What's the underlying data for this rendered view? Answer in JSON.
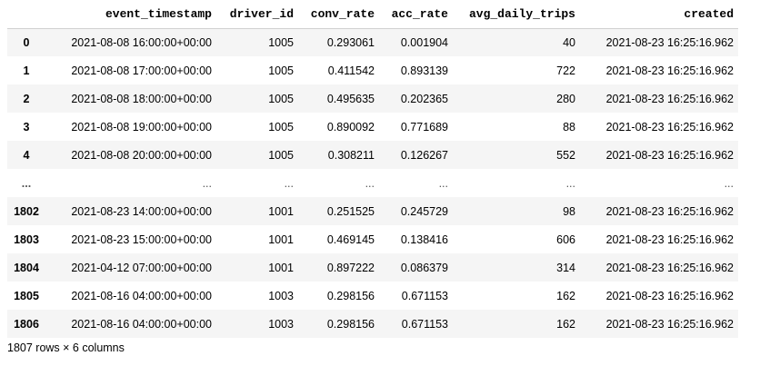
{
  "table": {
    "columns": [
      "",
      "event_timestamp",
      "driver_id",
      "conv_rate",
      "acc_rate",
      "avg_daily_trips",
      "created"
    ],
    "rows": [
      [
        "0",
        "2021-08-08 16:00:00+00:00",
        "1005",
        "0.293061",
        "0.001904",
        "40",
        "2021-08-23 16:25:16.962"
      ],
      [
        "1",
        "2021-08-08 17:00:00+00:00",
        "1005",
        "0.411542",
        "0.893139",
        "722",
        "2021-08-23 16:25:16.962"
      ],
      [
        "2",
        "2021-08-08 18:00:00+00:00",
        "1005",
        "0.495635",
        "0.202365",
        "280",
        "2021-08-23 16:25:16.962"
      ],
      [
        "3",
        "2021-08-08 19:00:00+00:00",
        "1005",
        "0.890092",
        "0.771689",
        "88",
        "2021-08-23 16:25:16.962"
      ],
      [
        "4",
        "2021-08-08 20:00:00+00:00",
        "1005",
        "0.308211",
        "0.126267",
        "552",
        "2021-08-23 16:25:16.962"
      ],
      [
        "...",
        "...",
        "...",
        "...",
        "...",
        "...",
        "..."
      ],
      [
        "1802",
        "2021-08-23 14:00:00+00:00",
        "1001",
        "0.251525",
        "0.245729",
        "98",
        "2021-08-23 16:25:16.962"
      ],
      [
        "1803",
        "2021-08-23 15:00:00+00:00",
        "1001",
        "0.469145",
        "0.138416",
        "606",
        "2021-08-23 16:25:16.962"
      ],
      [
        "1804",
        "2021-04-12 07:00:00+00:00",
        "1001",
        "0.897222",
        "0.086379",
        "314",
        "2021-08-23 16:25:16.962"
      ],
      [
        "1805",
        "2021-08-16 04:00:00+00:00",
        "1003",
        "0.298156",
        "0.671153",
        "162",
        "2021-08-23 16:25:16.962"
      ],
      [
        "1806",
        "2021-08-16 04:00:00+00:00",
        "1003",
        "0.298156",
        "0.671153",
        "162",
        "2021-08-23 16:25:16.962"
      ]
    ]
  },
  "caption": "1807 rows × 6 columns",
  "colors": {
    "row_shade": "#f5f5f5",
    "header_border": "#d0d0d0"
  }
}
